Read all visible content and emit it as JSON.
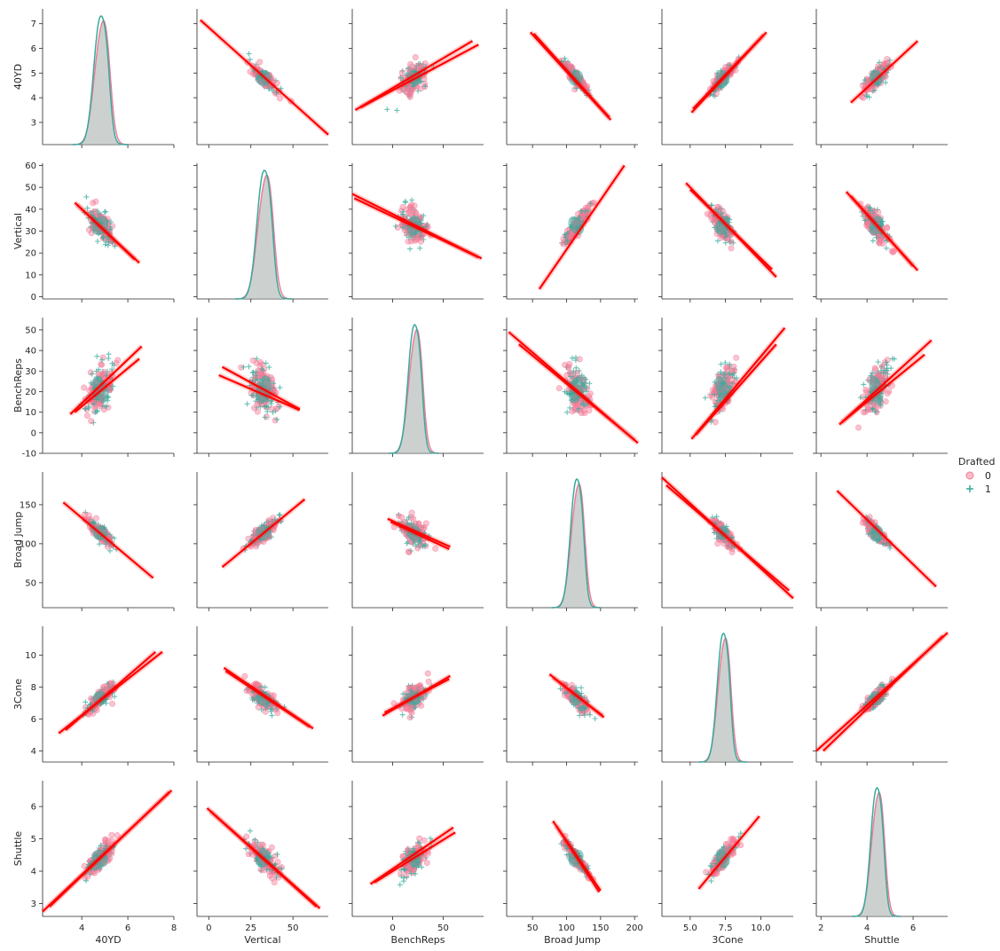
{
  "chart_data": {
    "type": "pairplot",
    "variables": [
      "40YD",
      "Vertical",
      "BenchReps",
      "Broad Jump",
      "3Cone",
      "Shuttle"
    ],
    "ranges": {
      "40YD": [
        2.1,
        7.6
      ],
      "Vertical": [
        -1,
        61
      ],
      "BenchReps": [
        -10,
        56
      ],
      "Broad Jump": [
        18,
        192
      ],
      "3Cone": [
        3.3,
        11.8
      ],
      "Shuttle": [
        2.6,
        6.8
      ]
    },
    "x_ranges": {
      "40YD": [
        2.3,
        8.0
      ],
      "Vertical": [
        -7,
        71
      ],
      "BenchReps": [
        -40,
        90
      ],
      "Broad Jump": [
        12,
        205
      ],
      "3Cone": [
        3.0,
        12.3
      ],
      "Shuttle": [
        1.8,
        7.5
      ]
    },
    "x_ticks": {
      "40YD": [
        4,
        6,
        8
      ],
      "Vertical": [
        0,
        25,
        50
      ],
      "BenchReps": [
        0,
        50
      ],
      "Broad Jump": [
        50,
        100,
        150,
        200
      ],
      "3Cone": [
        5.0,
        7.5,
        10.0
      ],
      "Shuttle": [
        2,
        4,
        6
      ]
    },
    "x_tick_labels": {
      "40YD": [
        "4",
        "6",
        "8"
      ],
      "Vertical": [
        "0",
        "25",
        "50"
      ],
      "BenchReps": [
        "0",
        "50"
      ],
      "Broad Jump": [
        "50",
        "100",
        "150",
        "200"
      ],
      "3Cone": [
        "5.0",
        "7.5",
        "10.0"
      ],
      "Shuttle": [
        "2",
        "4",
        "6"
      ]
    },
    "y_ticks": {
      "40YD": [
        3,
        4,
        5,
        6,
        7
      ],
      "Vertical": [
        0,
        10,
        20,
        30,
        40,
        50,
        60
      ],
      "BenchReps": [
        -10,
        0,
        10,
        20,
        30,
        40,
        50
      ],
      "Broad Jump": [
        50,
        100,
        150
      ],
      "3Cone": [
        4,
        6,
        8,
        10
      ],
      "Shuttle": [
        3,
        4,
        5,
        6
      ]
    },
    "means": {
      "40YD": 4.8,
      "Vertical": 32.5,
      "BenchReps": 21,
      "Broad Jump": 114,
      "3Cone": 7.3,
      "Shuttle": 4.4
    },
    "stds": {
      "40YD": 0.3,
      "Vertical": 4.2,
      "BenchReps": 6.2,
      "Broad Jump": 9,
      "3Cone": 0.42,
      "Shuttle": 0.26
    },
    "regression_lines": [
      {
        "x": "Vertical",
        "y": "40YD",
        "lines": [
          [
            [
              -5,
              7.15
            ],
            [
              71,
              2.5
            ]
          ]
        ]
      },
      {
        "x": "BenchReps",
        "y": "40YD",
        "lines": [
          [
            [
              -37,
              3.5
            ],
            [
              79,
              6.3
            ]
          ],
          [
            [
              -32,
              3.6
            ],
            [
              85,
              6.15
            ]
          ]
        ]
      },
      {
        "x": "Broad Jump",
        "y": "40YD",
        "lines": [
          [
            [
              47,
              6.65
            ],
            [
              165,
              3.1
            ]
          ],
          [
            [
              52,
              6.6
            ],
            [
              163,
              3.2
            ]
          ]
        ]
      },
      {
        "x": "3Cone",
        "y": "40YD",
        "lines": [
          [
            [
              5.1,
              3.4
            ],
            [
              10.4,
              6.65
            ]
          ],
          [
            [
              5.2,
              3.55
            ],
            [
              10.2,
              6.55
            ]
          ]
        ]
      },
      {
        "x": "Shuttle",
        "y": "40YD",
        "lines": [
          [
            [
              3.3,
              3.8
            ],
            [
              6.2,
              6.3
            ]
          ]
        ]
      },
      {
        "x": "40YD",
        "y": "Vertical",
        "lines": [
          [
            [
              3.7,
              43
            ],
            [
              6.5,
              15.5
            ]
          ],
          [
            [
              3.8,
              42
            ],
            [
              6.3,
              17
            ]
          ]
        ]
      },
      {
        "x": "BenchReps",
        "y": "Vertical",
        "lines": [
          [
            [
              -40,
              47
            ],
            [
              88,
              17.5
            ]
          ],
          [
            [
              -38,
              45
            ],
            [
              85,
              18
            ]
          ]
        ]
      },
      {
        "x": "Broad Jump",
        "y": "Vertical",
        "lines": [
          [
            [
              60,
              3.5
            ],
            [
              185,
              60
            ]
          ]
        ]
      },
      {
        "x": "3Cone",
        "y": "Vertical",
        "lines": [
          [
            [
              4.7,
              52
            ],
            [
              11.1,
              9
            ]
          ],
          [
            [
              5.0,
              49
            ],
            [
              10.8,
              12.5
            ]
          ]
        ]
      },
      {
        "x": "Shuttle",
        "y": "Vertical",
        "lines": [
          [
            [
              3.1,
              48
            ],
            [
              6.2,
              12
            ]
          ],
          [
            [
              3.3,
              46
            ],
            [
              6.0,
              14
            ]
          ]
        ]
      },
      {
        "x": "40YD",
        "y": "BenchReps",
        "lines": [
          [
            [
              3.5,
              9
            ],
            [
              6.6,
              42
            ]
          ],
          [
            [
              3.7,
              10
            ],
            [
              6.5,
              36
            ]
          ]
        ]
      },
      {
        "x": "Vertical",
        "y": "BenchReps",
        "lines": [
          [
            [
              8,
              32
            ],
            [
              54,
              11.5
            ]
          ],
          [
            [
              6,
              28
            ],
            [
              54,
              11
            ]
          ]
        ]
      },
      {
        "x": "Broad Jump",
        "y": "BenchReps",
        "lines": [
          [
            [
              15,
              49
            ],
            [
              205,
              -5
            ]
          ],
          [
            [
              30,
              43
            ],
            [
              200,
              -3.5
            ]
          ]
        ]
      },
      {
        "x": "3Cone",
        "y": "BenchReps",
        "lines": [
          [
            [
              5.1,
              -3
            ],
            [
              11.7,
              51
            ]
          ],
          [
            [
              5.4,
              -1
            ],
            [
              11.1,
              43
            ]
          ]
        ]
      },
      {
        "x": "Shuttle",
        "y": "BenchReps",
        "lines": [
          [
            [
              2.8,
              4
            ],
            [
              6.8,
              45
            ]
          ],
          [
            [
              2.9,
              5
            ],
            [
              6.5,
              38
            ]
          ]
        ]
      },
      {
        "x": "40YD",
        "y": "Broad Jump",
        "lines": [
          [
            [
              3.2,
              153
            ],
            [
              7.1,
              56
            ]
          ]
        ]
      },
      {
        "x": "Vertical",
        "y": "Broad Jump",
        "lines": [
          [
            [
              8,
              70
            ],
            [
              57,
              157
            ]
          ]
        ]
      },
      {
        "x": "BenchReps",
        "y": "Broad Jump",
        "lines": [
          [
            [
              -5,
              132
            ],
            [
              57,
              96
            ]
          ],
          [
            [
              -2,
              128
            ],
            [
              56,
              93
            ]
          ]
        ]
      },
      {
        "x": "3Cone",
        "y": "Broad Jump",
        "lines": [
          [
            [
              3.0,
              185
            ],
            [
              12.3,
              30
            ]
          ],
          [
            [
              3.3,
              175
            ],
            [
              12.0,
              40
            ]
          ]
        ]
      },
      {
        "x": "Shuttle",
        "y": "Broad Jump",
        "lines": [
          [
            [
              2.7,
              168
            ],
            [
              7.0,
              45
            ]
          ]
        ]
      },
      {
        "x": "40YD",
        "y": "3Cone",
        "lines": [
          [
            [
              3.0,
              5.1
            ],
            [
              7.5,
              10.2
            ]
          ],
          [
            [
              3.3,
              5.3
            ],
            [
              7.2,
              10.2
            ]
          ]
        ]
      },
      {
        "x": "Vertical",
        "y": "3Cone",
        "lines": [
          [
            [
              9,
              9.2
            ],
            [
              62,
              5.4
            ]
          ],
          [
            [
              10,
              9.0
            ],
            [
              60,
              5.5
            ]
          ]
        ]
      },
      {
        "x": "BenchReps",
        "y": "3Cone",
        "lines": [
          [
            [
              -10,
              6.2
            ],
            [
              57,
              8.7
            ]
          ],
          [
            [
              -8,
              6.4
            ],
            [
              56,
              8.5
            ]
          ]
        ]
      },
      {
        "x": "Broad Jump",
        "y": "3Cone",
        "lines": [
          [
            [
              75,
              8.8
            ],
            [
              155,
              6.1
            ]
          ],
          [
            [
              80,
              8.6
            ],
            [
              153,
              6.2
            ]
          ]
        ]
      },
      {
        "x": "Shuttle",
        "y": "3Cone",
        "lines": [
          [
            [
              1.8,
              4.0
            ],
            [
              7.5,
              11.4
            ]
          ],
          [
            [
              2.1,
              4.0
            ],
            [
              7.3,
              11.2
            ]
          ]
        ]
      },
      {
        "x": "40YD",
        "y": "Shuttle",
        "lines": [
          [
            [
              2.3,
              2.75
            ],
            [
              7.9,
              6.5
            ]
          ],
          [
            [
              2.6,
              2.9
            ],
            [
              7.8,
              6.45
            ]
          ]
        ]
      },
      {
        "x": "Vertical",
        "y": "Shuttle",
        "lines": [
          [
            [
              -1,
              5.95
            ],
            [
              66,
              2.85
            ]
          ],
          [
            [
              1,
              5.85
            ],
            [
              64,
              2.9
            ]
          ]
        ]
      },
      {
        "x": "BenchReps",
        "y": "Shuttle",
        "lines": [
          [
            [
              -22,
              3.6
            ],
            [
              60,
              5.35
            ]
          ],
          [
            [
              -18,
              3.65
            ],
            [
              62,
              5.2
            ]
          ]
        ]
      },
      {
        "x": "Broad Jump",
        "y": "Shuttle",
        "lines": [
          [
            [
              80,
              5.55
            ],
            [
              150,
              3.4
            ]
          ],
          [
            [
              85,
              5.4
            ],
            [
              148,
              3.35
            ]
          ]
        ]
      },
      {
        "x": "3Cone",
        "y": "Shuttle",
        "lines": [
          [
            [
              5.6,
              3.45
            ],
            [
              9.9,
              5.7
            ]
          ]
        ]
      }
    ],
    "legend": {
      "title": "Drafted",
      "entries": [
        {
          "label": "0",
          "marker": "circle",
          "color": "#f37b96"
        },
        {
          "label": "1",
          "marker": "plus",
          "color": "#36ab9c"
        }
      ],
      "placement": "right"
    },
    "colors": {
      "drafted_0": "#f37b96",
      "drafted_1": "#36ab9c",
      "regression": "#ff0000",
      "kde_fill": "#b0b8b6"
    }
  }
}
